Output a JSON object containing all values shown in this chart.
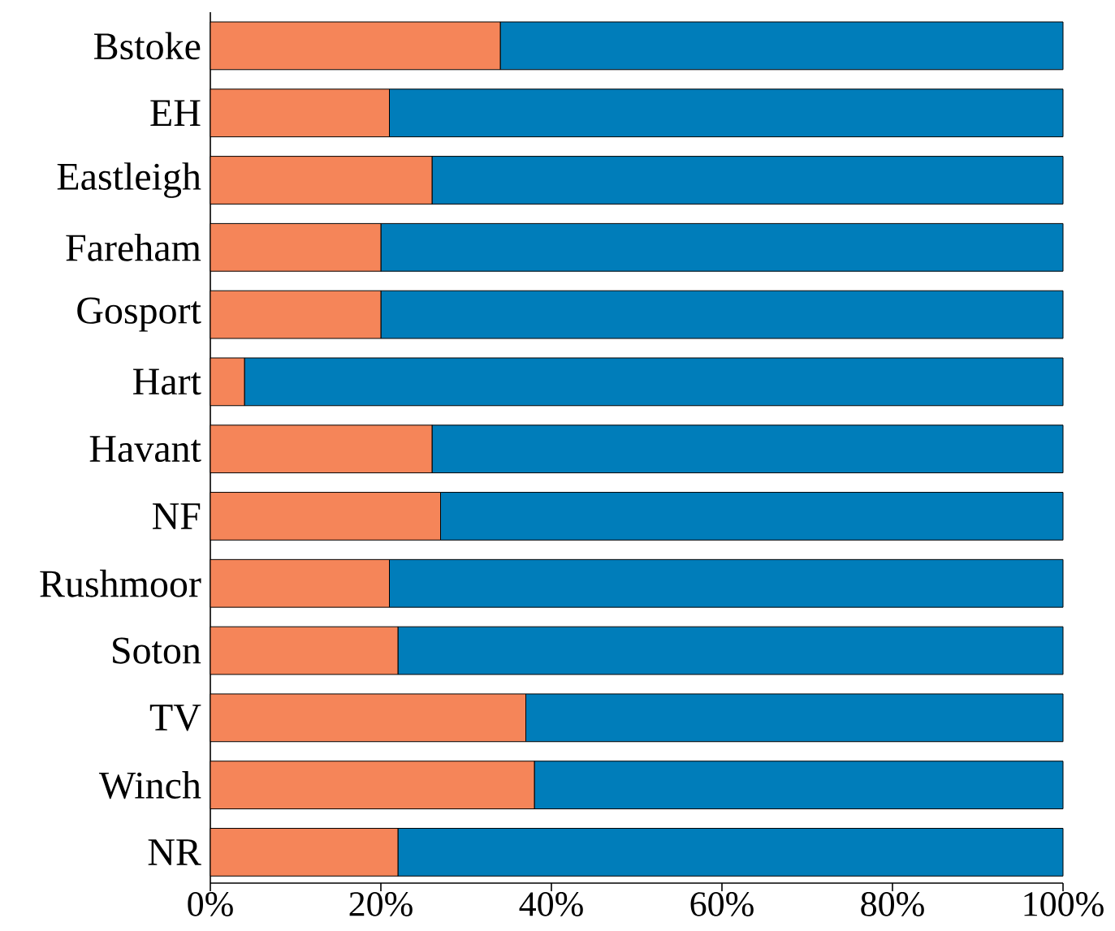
{
  "chart_data": {
    "type": "bar",
    "orientation": "horizontal",
    "stacked": true,
    "categories": [
      "Bstoke",
      "EH",
      "Eastleigh",
      "Fareham",
      "Gosport",
      "Hart",
      "Havant",
      "NF",
      "Rushmoor",
      "Soton",
      "TV",
      "Winch",
      "NR"
    ],
    "series": [
      {
        "color": "#f58559",
        "values": [
          34,
          21,
          26,
          20,
          20,
          4,
          26,
          27,
          21,
          22,
          37,
          38,
          22
        ]
      },
      {
        "color": "#007dba",
        "values": [
          66,
          79,
          74,
          80,
          80,
          96,
          74,
          73,
          79,
          78,
          63,
          62,
          78
        ]
      }
    ],
    "xlim": [
      0,
      100
    ],
    "xticks": [
      {
        "value": 0,
        "label": "0%"
      },
      {
        "value": 20,
        "label": "20%"
      },
      {
        "value": 40,
        "label": "40%"
      },
      {
        "value": 60,
        "label": "60%"
      },
      {
        "value": 80,
        "label": "80%"
      },
      {
        "value": 100,
        "label": "100%"
      }
    ]
  }
}
